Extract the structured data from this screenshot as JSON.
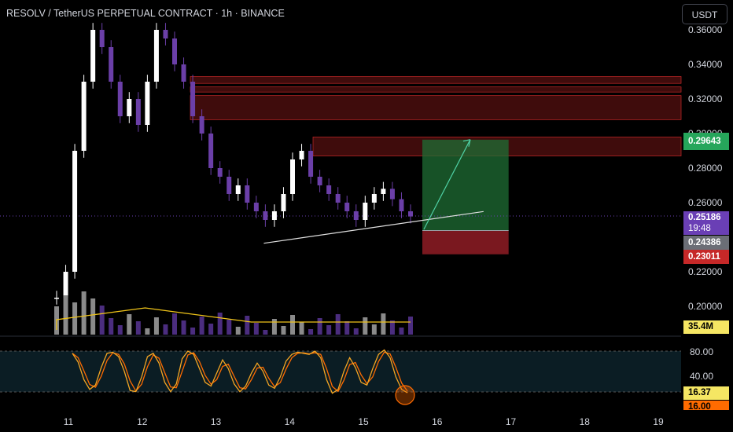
{
  "header": {
    "title": "RESOLV / TetherUS PERPETUAL CONTRACT · 1h · BINANCE",
    "currency_button": "USDT"
  },
  "colors": {
    "background": "#000000",
    "bull_candle": "#ffffff",
    "bear_candle": "#6b3fa8",
    "resistance_zone": "#8b1a1a",
    "target_zone": "#1f6e34",
    "stop_zone": "#a3202a",
    "volume_ma": "#f0c419",
    "stoch_k": "#f5a623",
    "stoch_d": "#ff6b00"
  },
  "price_tags": {
    "target": "0.29643",
    "current": "0.25186",
    "countdown": "19:48",
    "entry": "0.24386",
    "stop": "0.23011",
    "volume": "35.4M",
    "stoch_k": "16.37",
    "stoch_d": "16.00"
  },
  "chart_data": {
    "type": "candlestick",
    "y_axis": {
      "ticks": [
        "0.36000",
        "0.34000",
        "0.32000",
        "0.30000",
        "0.28000",
        "0.26000",
        "0.22000",
        "0.20000"
      ],
      "range": [
        0.19,
        0.365
      ]
    },
    "x_axis": {
      "ticks": [
        "11",
        "12",
        "13",
        "14",
        "15",
        "16",
        "17",
        "18",
        "19"
      ],
      "range": [
        10.1,
        19.4
      ]
    },
    "candles_approx_close": [
      0.205,
      0.22,
      0.29,
      0.33,
      0.36,
      0.35,
      0.33,
      0.31,
      0.32,
      0.305,
      0.33,
      0.36,
      0.355,
      0.34,
      0.33,
      0.31,
      0.3,
      0.28,
      0.275,
      0.265,
      0.27,
      0.26,
      0.255,
      0.25,
      0.255,
      0.265,
      0.285,
      0.29,
      0.275,
      0.27,
      0.265,
      0.26,
      0.255,
      0.25,
      0.26,
      0.265,
      0.268,
      0.262,
      0.255,
      0.252
    ],
    "resistance_zones": [
      [
        0.329,
        0.333
      ],
      [
        0.324,
        0.327
      ],
      [
        0.308,
        0.322
      ],
      [
        0.287,
        0.298
      ]
    ],
    "trend_line": {
      "from": [
        13.65,
        0.2365
      ],
      "to": [
        15.35,
        0.2485
      ]
    },
    "trade_setup": {
      "entry": 0.24386,
      "target": 0.29643,
      "stop": 0.23011,
      "x_range": [
        15.8,
        16.97
      ]
    },
    "projection_arrow": {
      "from": [
        15.82,
        0.2445
      ],
      "to": [
        16.45,
        0.2965
      ]
    },
    "stochastic": {
      "levels": [
        "80.00",
        "40.00"
      ],
      "k_values": [
        88,
        72,
        40,
        22,
        30,
        62,
        88,
        90,
        82,
        55,
        20,
        18,
        45,
        82,
        88,
        70,
        35,
        18,
        32,
        78,
        92,
        86,
        60,
        35,
        28,
        52,
        76,
        60,
        32,
        18,
        28,
        52,
        70,
        55,
        30,
        24,
        45,
        74,
        86,
        90,
        88,
        86,
        92,
        80,
        40,
        15,
        22,
        55,
        80,
        62,
        35,
        30,
        60,
        86,
        94,
        80,
        45,
        22,
        16
      ]
    }
  }
}
